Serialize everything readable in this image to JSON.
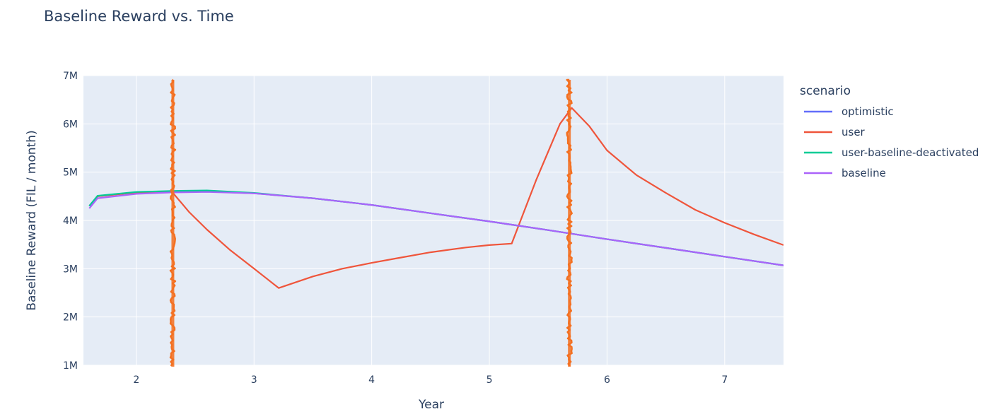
{
  "chart_data": {
    "type": "line",
    "title": "Baseline Reward vs. Time",
    "xlabel": "Year",
    "ylabel": "Baseline Reward (FIL / month)",
    "xlim": [
      1.55,
      7.5
    ],
    "ylim": [
      1000000,
      7000000
    ],
    "x_ticks": [
      2,
      3,
      4,
      5,
      6,
      7
    ],
    "y_ticks": [
      1000000,
      2000000,
      3000000,
      4000000,
      5000000,
      6000000,
      7000000
    ],
    "y_tick_labels": [
      "1M",
      "2M",
      "3M",
      "4M",
      "5M",
      "6M",
      "7M"
    ],
    "legend_title": "scenario",
    "legend_position": "right",
    "grid": true,
    "series": [
      {
        "name": "optimistic",
        "color": "#636efa",
        "x": [
          1.6,
          1.67,
          2.0,
          2.3,
          2.6,
          3.0,
          3.5,
          4.0,
          4.5,
          5.0,
          5.5,
          6.0,
          6.5,
          7.0,
          7.5
        ],
        "y": [
          4300000,
          4500000,
          4580000,
          4600000,
          4600000,
          4560000,
          4460000,
          4320000,
          4150000,
          3980000,
          3800000,
          3610000,
          3430000,
          3250000,
          3070000
        ]
      },
      {
        "name": "user",
        "color": "#ef553b",
        "x": [
          1.6,
          1.67,
          2.0,
          2.3,
          2.45,
          2.6,
          2.8,
          3.0,
          3.21,
          3.5,
          3.75,
          4.0,
          4.2,
          4.5,
          4.8,
          5.0,
          5.19,
          5.4,
          5.6,
          5.7,
          5.85,
          6.0,
          6.25,
          6.5,
          6.75,
          7.0,
          7.25,
          7.5
        ],
        "y": [
          4300000,
          4500000,
          4580000,
          4600000,
          4170000,
          3810000,
          3380000,
          3000000,
          2600000,
          2840000,
          3000000,
          3120000,
          3210000,
          3340000,
          3440000,
          3490000,
          3520000,
          4850000,
          6000000,
          6330000,
          5950000,
          5450000,
          4940000,
          4570000,
          4220000,
          3950000,
          3710000,
          3490000
        ]
      },
      {
        "name": "user-baseline-deactivated",
        "color": "#00cc96",
        "x": [
          1.6,
          1.67,
          2.0,
          2.3,
          2.6,
          3.0,
          3.5,
          4.0,
          4.5,
          5.0,
          5.5,
          6.0,
          6.5,
          7.0,
          7.5
        ],
        "y": [
          4300000,
          4510000,
          4590000,
          4610000,
          4620000,
          4570000,
          4460000,
          4320000,
          4150000,
          3980000,
          3800000,
          3610000,
          3430000,
          3250000,
          3070000
        ]
      },
      {
        "name": "baseline",
        "color": "#ab63fa",
        "x": [
          1.6,
          1.67,
          2.0,
          2.3,
          2.6,
          3.0,
          3.5,
          4.0,
          4.5,
          5.0,
          5.5,
          6.0,
          6.5,
          7.0,
          7.5
        ],
        "y": [
          4250000,
          4460000,
          4550000,
          4580000,
          4590000,
          4560000,
          4460000,
          4320000,
          4150000,
          3980000,
          3800000,
          3610000,
          3430000,
          3250000,
          3070000
        ]
      }
    ],
    "markers": [
      {
        "x": 2.31,
        "color": "#f37021",
        "style": "vertical-scribble"
      },
      {
        "x": 5.68,
        "color": "#f37021",
        "style": "vertical-scribble"
      }
    ]
  }
}
